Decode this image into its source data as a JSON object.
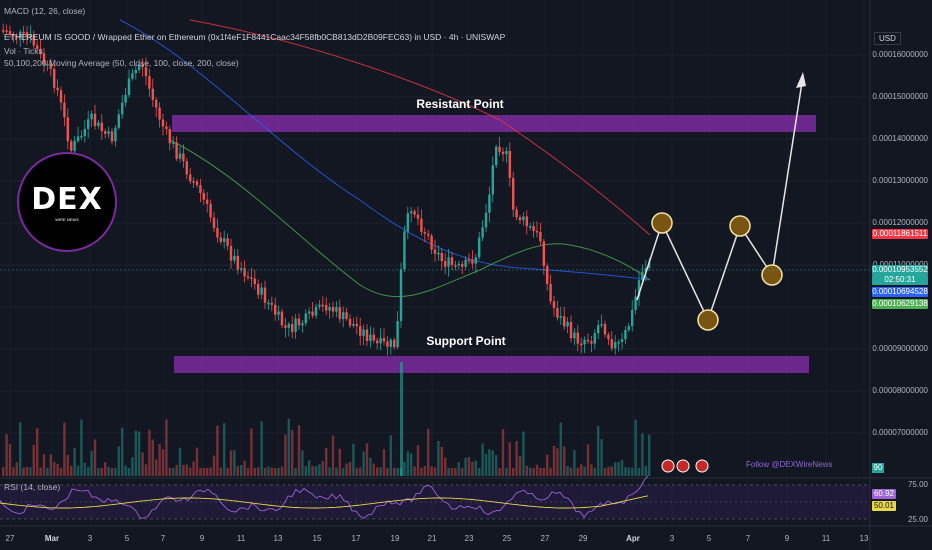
{
  "header": {
    "macd_label": "MACD (12, 26, close)",
    "title": "ETHEREUM IS GOOD / Wrapped Ether on Ethereum (0x1f4eF1F8441Caac34F58fb0CB813dD2B09FEC63) in USD · 4h · UNISWAP",
    "vol_label": "Vol · Ticks",
    "ma_label": "50,100,200 Moving Average (50, close, 100, close, 200, close)"
  },
  "currency": "USD",
  "y_axis": [
    "0.00016000000",
    "0.00015000000",
    "0.00014000000",
    "0.00013000000",
    "0.00012000000",
    "0.00011000000",
    "0.00010000000",
    "0.00009000000",
    "0.00008000000",
    "0.00007000000"
  ],
  "price_badges": {
    "ma_red": "0.00011861511",
    "last": "0.00010953552",
    "countdown": "02:50:31",
    "ma_blue": "0.00010694528",
    "ma_green": "0.00010629138"
  },
  "annotations": {
    "resistant": "Resistant Point",
    "support": "Support Point",
    "follow": "Follow @DEXWireNews"
  },
  "logo": {
    "text": "DEX",
    "sub": "WIRE NEWS"
  },
  "volume_badge": "90",
  "rsi": {
    "label": "RSI (14, close)",
    "value": "60.92",
    "ma": "50.01",
    "levels": [
      "75.00",
      "25.00"
    ]
  },
  "x_axis": [
    "27",
    "Mar",
    "3",
    "5",
    "7",
    "9",
    "11",
    "13",
    "15",
    "17",
    "19",
    "21",
    "23",
    "25",
    "27",
    "29",
    "Apr",
    "3",
    "5",
    "7",
    "9",
    "11",
    "13"
  ],
  "colors": {
    "up": "#26a69a",
    "down": "#ef5350",
    "zone": "#7b2a9e",
    "ma_red": "#f23645",
    "ma_blue": "#2962ff",
    "ma_green": "#4caf50"
  }
}
